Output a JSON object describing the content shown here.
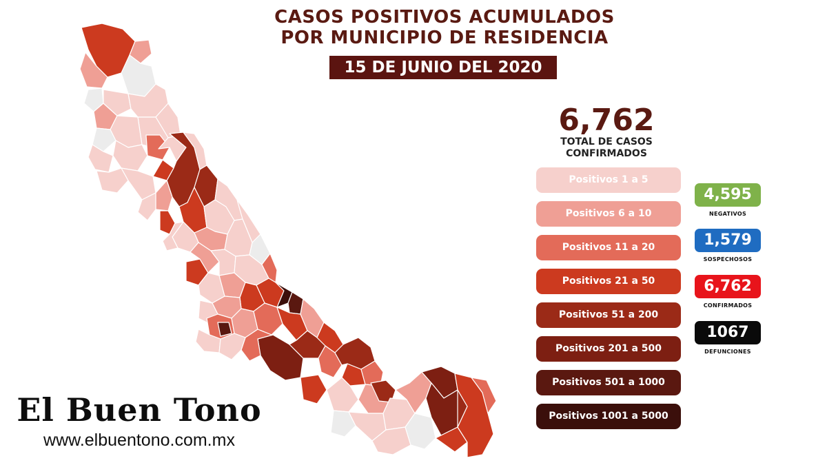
{
  "header": {
    "title_line1": "CASOS POSITIVOS ACUMULADOS",
    "title_line2": "POR MUNICIPIO DE RESIDENCIA",
    "date": "15 DE JUNIO DEL 2020"
  },
  "summary": {
    "total_value": "6,762",
    "total_label_line1": "TOTAL DE CASOS",
    "total_label_line2": "CONFIRMADOS"
  },
  "legend": [
    {
      "label": "Positivos 1 a 5",
      "color": "#f6d0cc"
    },
    {
      "label": "Positivos 6 a 10",
      "color": "#ef9f95"
    },
    {
      "label": "Positivos 11 a 20",
      "color": "#e36b59"
    },
    {
      "label": "Positivos 21 a 50",
      "color": "#cc3a1f"
    },
    {
      "label": "Positivos 51 a 200",
      "color": "#9b2a17"
    },
    {
      "label": "Positivos 201 a 500",
      "color": "#7d1f12"
    },
    {
      "label": "Positivos 501 a 1000",
      "color": "#5a1810"
    },
    {
      "label": "Positivos 1001 a 5000",
      "color": "#3b0f0b"
    }
  ],
  "stats": [
    {
      "value": "4,595",
      "label": "NEGATIVOS",
      "color": "#7fb24a"
    },
    {
      "value": "1,579",
      "label": "SOSPECHOSOS",
      "color": "#1f6cc1"
    },
    {
      "value": "6,762",
      "label": "CONFIRMADOS",
      "color": "#e8141b"
    },
    {
      "value": "1067",
      "label": "DEFUNCIONES",
      "color": "#0a0a0a"
    }
  ],
  "map": {
    "no_case_color": "#ececec",
    "border_color": "#ffffff"
  },
  "brand": {
    "name": "El Buen Tono",
    "url": "www.elbuentono.com.mx"
  }
}
